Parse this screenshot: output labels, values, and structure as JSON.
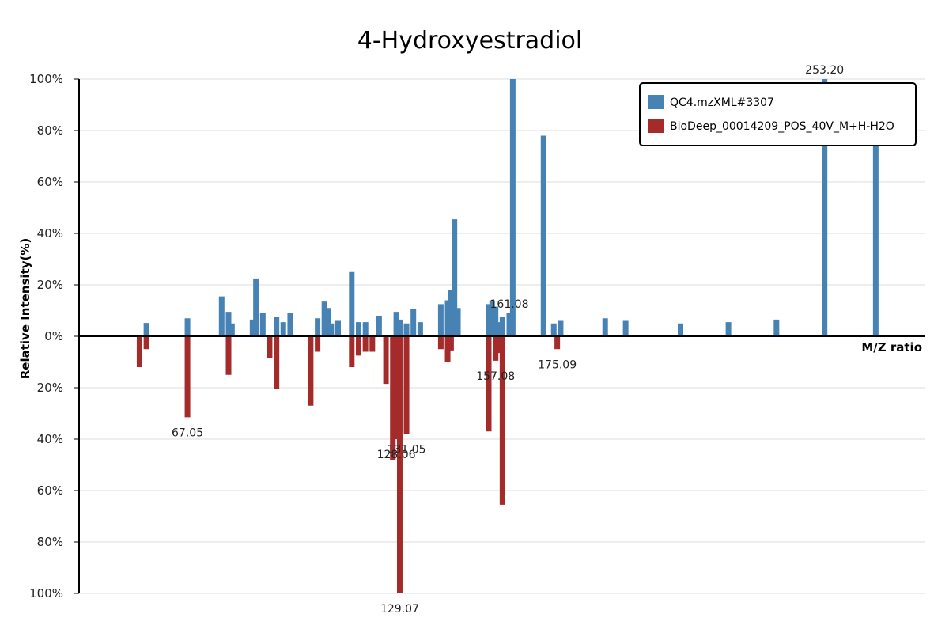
{
  "chart_data": {
    "type": "bar",
    "title": "4-Hydroxyestradiol",
    "xlabel": "M/Z ratio",
    "ylabel": "Relative Intensity(%)",
    "ylim": [
      -100,
      100
    ],
    "y_tick_values": [
      100,
      80,
      60,
      40,
      20,
      0,
      -20,
      -40,
      -60,
      -80,
      -100
    ],
    "y_tick_labels": [
      "100%",
      "80%",
      "60%",
      "40%",
      "20%",
      "0%",
      "20%",
      "40%",
      "60%",
      "80%",
      "100%"
    ],
    "xlim": [
      40,
      278
    ],
    "legend_position": "top-right",
    "series": [
      {
        "name": "QC4.mzXML#3307",
        "color": "#4682b4",
        "direction": "up",
        "mz": [
          55.05,
          67.05,
          77.04,
          79.05,
          80.05,
          86.06,
          87.06,
          89.06,
          93.07,
          95.05,
          97.06,
          105.07,
          107.05,
          108.06,
          109.06,
          111.05,
          115.05,
          117.06,
          119.07,
          123.04,
          128.06,
          129.07,
          131.05,
          133.05,
          135.06,
          141.07,
          143.07,
          144.07,
          145.06,
          146.07,
          155.07,
          156.06,
          157.08,
          158.06,
          159.08,
          161.08,
          162.09,
          171.08,
          174.08,
          176.08,
          189.09,
          195.08,
          211.11,
          225.11,
          239.14,
          253.2,
          268.15
        ],
        "values": [
          5.2,
          7.0,
          15.5,
          9.5,
          5.0,
          6.5,
          22.5,
          9.0,
          7.5,
          5.5,
          9.0,
          7.0,
          13.5,
          11.0,
          5.0,
          6.0,
          25.0,
          5.5,
          5.5,
          8.0,
          9.5,
          6.5,
          5.0,
          10.5,
          5.5,
          12.5,
          14.0,
          18.0,
          45.5,
          11.0,
          12.5,
          14.0,
          11.5,
          5.5,
          7.5,
          9.0,
          100.0,
          78.0,
          5.0,
          6.0,
          7.0,
          6.0,
          5.0,
          5.5,
          6.5,
          100.0,
          78.0
        ],
        "labels": [
          {
            "mz": 161.08,
            "text": "161.08"
          },
          {
            "mz": 253.2,
            "text": "253.20"
          }
        ]
      },
      {
        "name": "BioDeep_00014209_POS_40V_M+H-H2O",
        "color": "#a52a2a",
        "direction": "down",
        "mz": [
          53.04,
          55.05,
          67.05,
          79.05,
          91.05,
          93.07,
          103.05,
          105.07,
          115.05,
          117.06,
          119.05,
          121.06,
          125.05,
          127.05,
          128.06,
          129.07,
          131.05,
          141.07,
          143.07,
          144.07,
          155.07,
          157.08,
          158.06,
          159.08,
          175.09
        ],
        "values": [
          12.0,
          5.0,
          31.5,
          15.0,
          8.5,
          20.5,
          27.0,
          6.0,
          12.0,
          7.5,
          6.0,
          6.0,
          18.5,
          48.0,
          40.0,
          100.0,
          38.0,
          5.0,
          10.0,
          5.5,
          37.0,
          9.5,
          6.5,
          65.5,
          5.0
        ],
        "labels": [
          {
            "mz": 67.05,
            "text": "67.05"
          },
          {
            "mz": 131.05,
            "text": "131.05"
          },
          {
            "mz": 128.06,
            "text": "128.06"
          },
          {
            "mz": 129.07,
            "text": "129.07"
          },
          {
            "mz": 157.08,
            "text": "157.08"
          },
          {
            "mz": 175.09,
            "text": "175.09"
          }
        ]
      }
    ]
  }
}
